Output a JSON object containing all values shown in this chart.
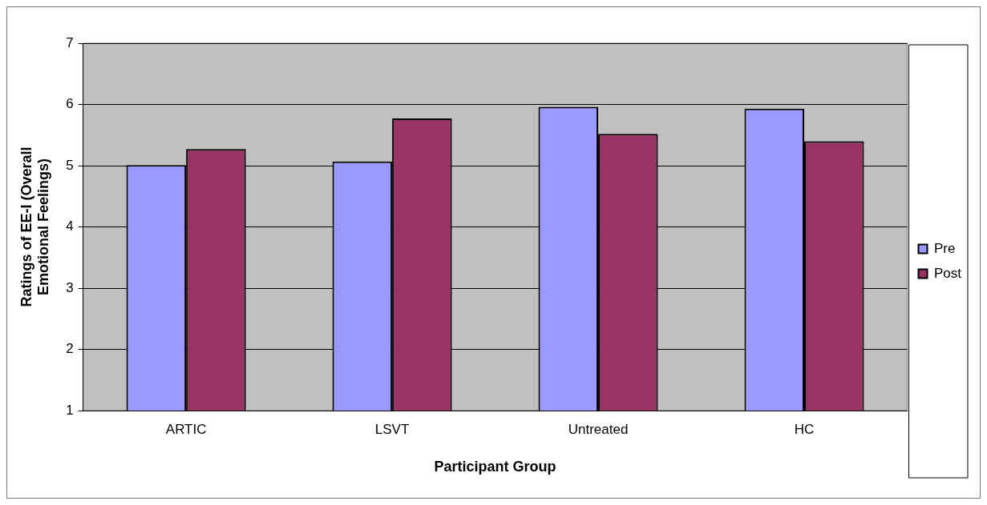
{
  "chart_data": {
    "type": "bar",
    "xlabel": "Participant Group",
    "ylabel": "Ratings of EE-I (Overall Emotional Feelings)",
    "categories": [
      "ARTIC",
      "LSVT",
      "Untreated",
      "HC"
    ],
    "series": [
      {
        "name": "Pre",
        "color": "#9999ff",
        "values": [
          5.01,
          5.07,
          5.96,
          5.93
        ]
      },
      {
        "name": "Post",
        "color": "#993366",
        "values": [
          5.27,
          5.77,
          5.52,
          5.4
        ]
      }
    ],
    "ylim": [
      1,
      7
    ],
    "yticks": [
      1,
      2,
      3,
      4,
      5,
      6,
      7
    ],
    "grid": "y",
    "legend": "right"
  }
}
